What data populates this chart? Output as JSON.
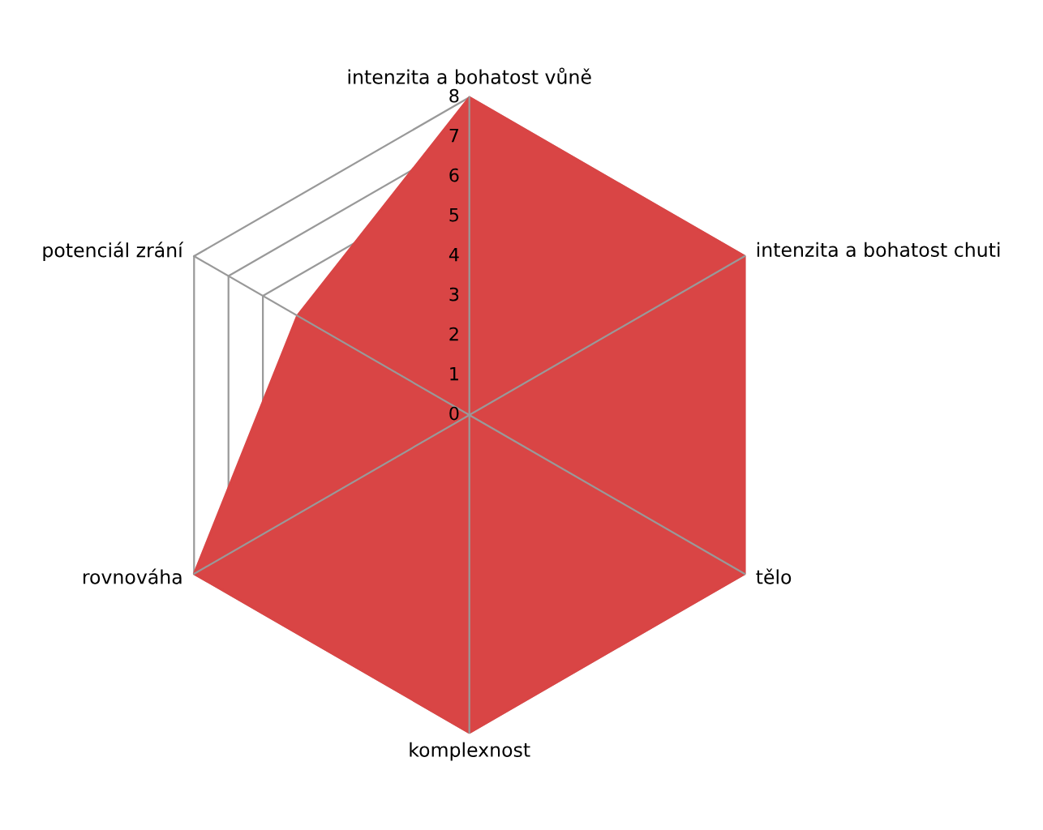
{
  "chart_data": {
    "type": "radar",
    "categories": [
      "intenzita a bohatost vůně",
      "intenzita a bohatost chuti",
      "tělo",
      "komplexnost",
      "rovnováha",
      "potenciál zrání"
    ],
    "series": [
      {
        "color": "#d94545",
        "values": [
          8,
          8,
          8,
          8,
          8,
          5
        ]
      }
    ],
    "ylim": [
      0,
      8
    ],
    "yticks": [
      0,
      1,
      2,
      3,
      4,
      5,
      6,
      7,
      8
    ],
    "grid": true,
    "legend": false
  }
}
